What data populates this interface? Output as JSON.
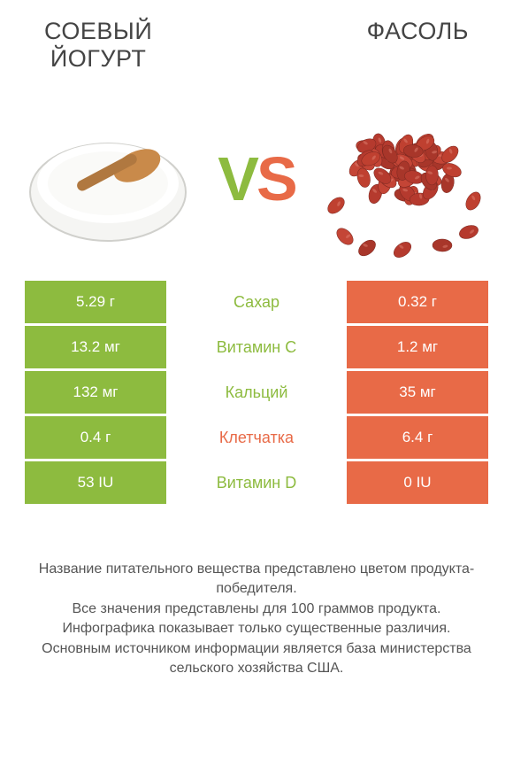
{
  "colors": {
    "green": "#8dbb3f",
    "orange": "#e86a47",
    "text_mid_green": "#8dbb3f",
    "text_mid_orange": "#e86a47"
  },
  "header": {
    "left_title": "Соевый\nйогурт",
    "right_title": "Фасоль",
    "vs_v": "V",
    "vs_s": "S"
  },
  "rows": [
    {
      "left": "5.29 г",
      "mid": "Сахар",
      "right": "0.32 г",
      "winner": "left"
    },
    {
      "left": "13.2 мг",
      "mid": "Витамин C",
      "right": "1.2 мг",
      "winner": "left"
    },
    {
      "left": "132 мг",
      "mid": "Кальций",
      "right": "35 мг",
      "winner": "left"
    },
    {
      "left": "0.4 г",
      "mid": "Клетчатка",
      "right": "6.4 г",
      "winner": "right"
    },
    {
      "left": "53 IU",
      "mid": "Витамин D",
      "right": "0 IU",
      "winner": "left"
    }
  ],
  "footer": {
    "line1": "Название питательного вещества представлено цветом продукта-победителя.",
    "line2": "Все значения представлены для 100 граммов продукта.",
    "line3": "Инфографика показывает только существенные различия.",
    "line4": "Основным источником информации является база министерства сельского хозяйства США."
  }
}
